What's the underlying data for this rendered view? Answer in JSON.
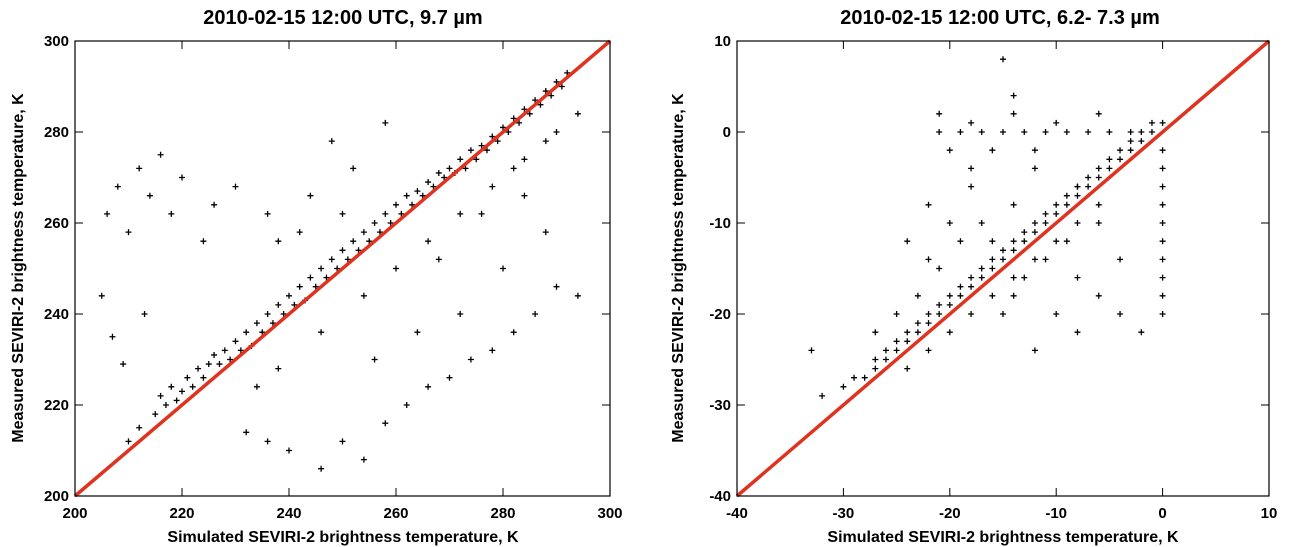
{
  "chart_data": [
    {
      "type": "scatter",
      "title": "2010-02-15 12:00 UTC,  9.7 µm",
      "xlabel": "Simulated SEVIRI-2 brightness temperature, K",
      "ylabel": "Measured SEVIRI-2 brightness temperature, K",
      "xlim": [
        200,
        300
      ],
      "ylim": [
        200,
        300
      ],
      "xticks": [
        "200",
        "220",
        "240",
        "260",
        "280",
        "300"
      ],
      "yticks": [
        "200",
        "220",
        "240",
        "260",
        "280",
        "300"
      ],
      "marker": "+",
      "marker_color": "#000000",
      "reference_line": {
        "from": [
          200,
          200
        ],
        "to": [
          300,
          300
        ],
        "color": "#e0321e"
      },
      "grid": false,
      "points": [
        [
          210,
          212
        ],
        [
          212,
          215
        ],
        [
          215,
          218
        ],
        [
          216,
          222
        ],
        [
          217,
          220
        ],
        [
          218,
          224
        ],
        [
          219,
          221
        ],
        [
          220,
          223
        ],
        [
          221,
          226
        ],
        [
          222,
          224
        ],
        [
          223,
          228
        ],
        [
          224,
          226
        ],
        [
          225,
          229
        ],
        [
          226,
          231
        ],
        [
          227,
          229
        ],
        [
          228,
          232
        ],
        [
          229,
          230
        ],
        [
          230,
          234
        ],
        [
          231,
          232
        ],
        [
          232,
          236
        ],
        [
          233,
          233
        ],
        [
          234,
          238
        ],
        [
          235,
          236
        ],
        [
          236,
          240
        ],
        [
          237,
          238
        ],
        [
          238,
          242
        ],
        [
          239,
          240
        ],
        [
          240,
          244
        ],
        [
          241,
          242
        ],
        [
          242,
          246
        ],
        [
          243,
          243
        ],
        [
          244,
          248
        ],
        [
          245,
          246
        ],
        [
          246,
          250
        ],
        [
          247,
          248
        ],
        [
          248,
          252
        ],
        [
          249,
          250
        ],
        [
          250,
          254
        ],
        [
          251,
          252
        ],
        [
          252,
          256
        ],
        [
          253,
          254
        ],
        [
          254,
          258
        ],
        [
          255,
          256
        ],
        [
          256,
          260
        ],
        [
          257,
          258
        ],
        [
          258,
          262
        ],
        [
          259,
          260
        ],
        [
          260,
          264
        ],
        [
          261,
          262
        ],
        [
          262,
          266
        ],
        [
          263,
          264
        ],
        [
          264,
          267
        ],
        [
          265,
          266
        ],
        [
          266,
          269
        ],
        [
          267,
          268
        ],
        [
          268,
          271
        ],
        [
          269,
          270
        ],
        [
          270,
          272
        ],
        [
          271,
          271
        ],
        [
          272,
          274
        ],
        [
          273,
          272
        ],
        [
          274,
          276
        ],
        [
          275,
          274
        ],
        [
          276,
          277
        ],
        [
          277,
          276
        ],
        [
          278,
          279
        ],
        [
          279,
          278
        ],
        [
          280,
          281
        ],
        [
          281,
          280
        ],
        [
          282,
          283
        ],
        [
          283,
          282
        ],
        [
          284,
          285
        ],
        [
          285,
          284
        ],
        [
          286,
          287
        ],
        [
          287,
          286
        ],
        [
          288,
          289
        ],
        [
          289,
          288
        ],
        [
          290,
          291
        ],
        [
          291,
          290
        ],
        [
          292,
          293
        ],
        [
          206,
          262
        ],
        [
          208,
          268
        ],
        [
          210,
          258
        ],
        [
          212,
          272
        ],
        [
          214,
          266
        ],
        [
          216,
          275
        ],
        [
          218,
          262
        ],
        [
          220,
          270
        ],
        [
          224,
          256
        ],
        [
          226,
          264
        ],
        [
          205,
          244
        ],
        [
          207,
          235
        ],
        [
          209,
          229
        ],
        [
          213,
          240
        ],
        [
          230,
          268
        ],
        [
          236,
          262
        ],
        [
          244,
          266
        ],
        [
          252,
          272
        ],
        [
          248,
          278
        ],
        [
          258,
          282
        ],
        [
          232,
          214
        ],
        [
          236,
          212
        ],
        [
          240,
          210
        ],
        [
          246,
          206
        ],
        [
          250,
          212
        ],
        [
          254,
          208
        ],
        [
          258,
          216
        ],
        [
          262,
          220
        ],
        [
          266,
          224
        ],
        [
          270,
          226
        ],
        [
          274,
          230
        ],
        [
          278,
          232
        ],
        [
          282,
          236
        ],
        [
          286,
          240
        ],
        [
          290,
          246
        ],
        [
          294,
          244
        ],
        [
          272,
          240
        ],
        [
          264,
          236
        ],
        [
          256,
          230
        ],
        [
          268,
          252
        ],
        [
          276,
          262
        ],
        [
          284,
          266
        ],
        [
          288,
          258
        ],
        [
          280,
          250
        ],
        [
          284,
          274
        ],
        [
          290,
          280
        ],
        [
          294,
          284
        ],
        [
          238,
          256
        ],
        [
          242,
          258
        ],
        [
          250,
          262
        ],
        [
          234,
          224
        ],
        [
          238,
          228
        ],
        [
          246,
          236
        ],
        [
          254,
          244
        ],
        [
          260,
          250
        ],
        [
          266,
          256
        ],
        [
          272,
          262
        ],
        [
          278,
          268
        ],
        [
          282,
          272
        ],
        [
          288,
          278
        ]
      ]
    },
    {
      "type": "scatter",
      "title": "2010-02-15 12:00 UTC,  6.2- 7.3 µm",
      "xlabel": "Simulated SEVIRI-2 brightness temperature, K",
      "ylabel": "Measured SEVIRI-2 brightness temperature, K",
      "xlim": [
        -40,
        10
      ],
      "ylim": [
        -40,
        10
      ],
      "xticks": [
        "-40",
        "-30",
        "-20",
        "-10",
        "0",
        "10"
      ],
      "yticks": [
        "-40",
        "-30",
        "-20",
        "-10",
        "0",
        "10"
      ],
      "marker": "+",
      "marker_color": "#000000",
      "reference_line": {
        "from": [
          -40,
          -40
        ],
        "to": [
          10,
          10
        ],
        "color": "#e0321e"
      },
      "grid": false,
      "points": [
        [
          -33,
          -24
        ],
        [
          -32,
          -29
        ],
        [
          -30,
          -28
        ],
        [
          -29,
          -27
        ],
        [
          -28,
          -27
        ],
        [
          -27,
          -26
        ],
        [
          -27,
          -25
        ],
        [
          -26,
          -25
        ],
        [
          -26,
          -24
        ],
        [
          -25,
          -24
        ],
        [
          -25,
          -23
        ],
        [
          -24,
          -23
        ],
        [
          -24,
          -22
        ],
        [
          -23,
          -22
        ],
        [
          -23,
          -21
        ],
        [
          -22,
          -21
        ],
        [
          -22,
          -20
        ],
        [
          -21,
          -20
        ],
        [
          -21,
          -19
        ],
        [
          -20,
          -19
        ],
        [
          -20,
          -18
        ],
        [
          -19,
          -18
        ],
        [
          -19,
          -17
        ],
        [
          -18,
          -17
        ],
        [
          -18,
          -16
        ],
        [
          -17,
          -16
        ],
        [
          -17,
          -15
        ],
        [
          -16,
          -15
        ],
        [
          -16,
          -14
        ],
        [
          -15,
          -14
        ],
        [
          -15,
          -13
        ],
        [
          -14,
          -13
        ],
        [
          -14,
          -12
        ],
        [
          -13,
          -12
        ],
        [
          -13,
          -11
        ],
        [
          -12,
          -11
        ],
        [
          -12,
          -10
        ],
        [
          -11,
          -10
        ],
        [
          -11,
          -9
        ],
        [
          -10,
          -9
        ],
        [
          -10,
          -8
        ],
        [
          -9,
          -8
        ],
        [
          -9,
          -7
        ],
        [
          -8,
          -7
        ],
        [
          -8,
          -6
        ],
        [
          -7,
          -6
        ],
        [
          -7,
          -5
        ],
        [
          -6,
          -5
        ],
        [
          -6,
          -4
        ],
        [
          -5,
          -4
        ],
        [
          -5,
          -3
        ],
        [
          -4,
          -3
        ],
        [
          -4,
          -2
        ],
        [
          -3,
          -2
        ],
        [
          -3,
          -1
        ],
        [
          -2,
          -1
        ],
        [
          -2,
          0
        ],
        [
          -1,
          0
        ],
        [
          -1,
          1
        ],
        [
          0,
          1
        ],
        [
          -21,
          0
        ],
        [
          -19,
          0
        ],
        [
          -17,
          0
        ],
        [
          -15,
          0
        ],
        [
          -13,
          0
        ],
        [
          -11,
          0
        ],
        [
          -9,
          0
        ],
        [
          -7,
          0
        ],
        [
          -5,
          0
        ],
        [
          -3,
          0
        ],
        [
          -21,
          2
        ],
        [
          -18,
          1
        ],
        [
          -14,
          2
        ],
        [
          -10,
          1
        ],
        [
          -6,
          2
        ],
        [
          -15,
          8
        ],
        [
          -14,
          4
        ],
        [
          -16,
          -2
        ],
        [
          -12,
          -4
        ],
        [
          -8,
          -6
        ],
        [
          -22,
          -8
        ],
        [
          -20,
          -10
        ],
        [
          -18,
          -6
        ],
        [
          -16,
          -12
        ],
        [
          -14,
          -8
        ],
        [
          -22,
          -14
        ],
        [
          -24,
          -12
        ],
        [
          -20,
          -2
        ],
        [
          -18,
          -4
        ],
        [
          -12,
          -2
        ],
        [
          0,
          -20
        ],
        [
          0,
          -18
        ],
        [
          0,
          -16
        ],
        [
          0,
          -14
        ],
        [
          0,
          -12
        ],
        [
          0,
          -10
        ],
        [
          0,
          -8
        ],
        [
          0,
          -6
        ],
        [
          0,
          -4
        ],
        [
          0,
          -2
        ],
        [
          -2,
          -22
        ],
        [
          -4,
          -20
        ],
        [
          -6,
          -18
        ],
        [
          -8,
          -22
        ],
        [
          -10,
          -20
        ],
        [
          -12,
          -24
        ],
        [
          -14,
          -18
        ],
        [
          -8,
          -16
        ],
        [
          -4,
          -14
        ],
        [
          -6,
          -10
        ],
        [
          -23,
          -18
        ],
        [
          -25,
          -20
        ],
        [
          -27,
          -22
        ],
        [
          -21,
          -15
        ],
        [
          -19,
          -12
        ],
        [
          -17,
          -10
        ],
        [
          -15,
          -20
        ],
        [
          -13,
          -16
        ],
        [
          -11,
          -14
        ],
        [
          -9,
          -12
        ],
        [
          -24,
          -26
        ],
        [
          -22,
          -24
        ],
        [
          -20,
          -22
        ],
        [
          -18,
          -20
        ],
        [
          -16,
          -18
        ],
        [
          -14,
          -16
        ],
        [
          -12,
          -14
        ],
        [
          -10,
          -12
        ],
        [
          -8,
          -10
        ],
        [
          -6,
          -8
        ]
      ]
    }
  ]
}
